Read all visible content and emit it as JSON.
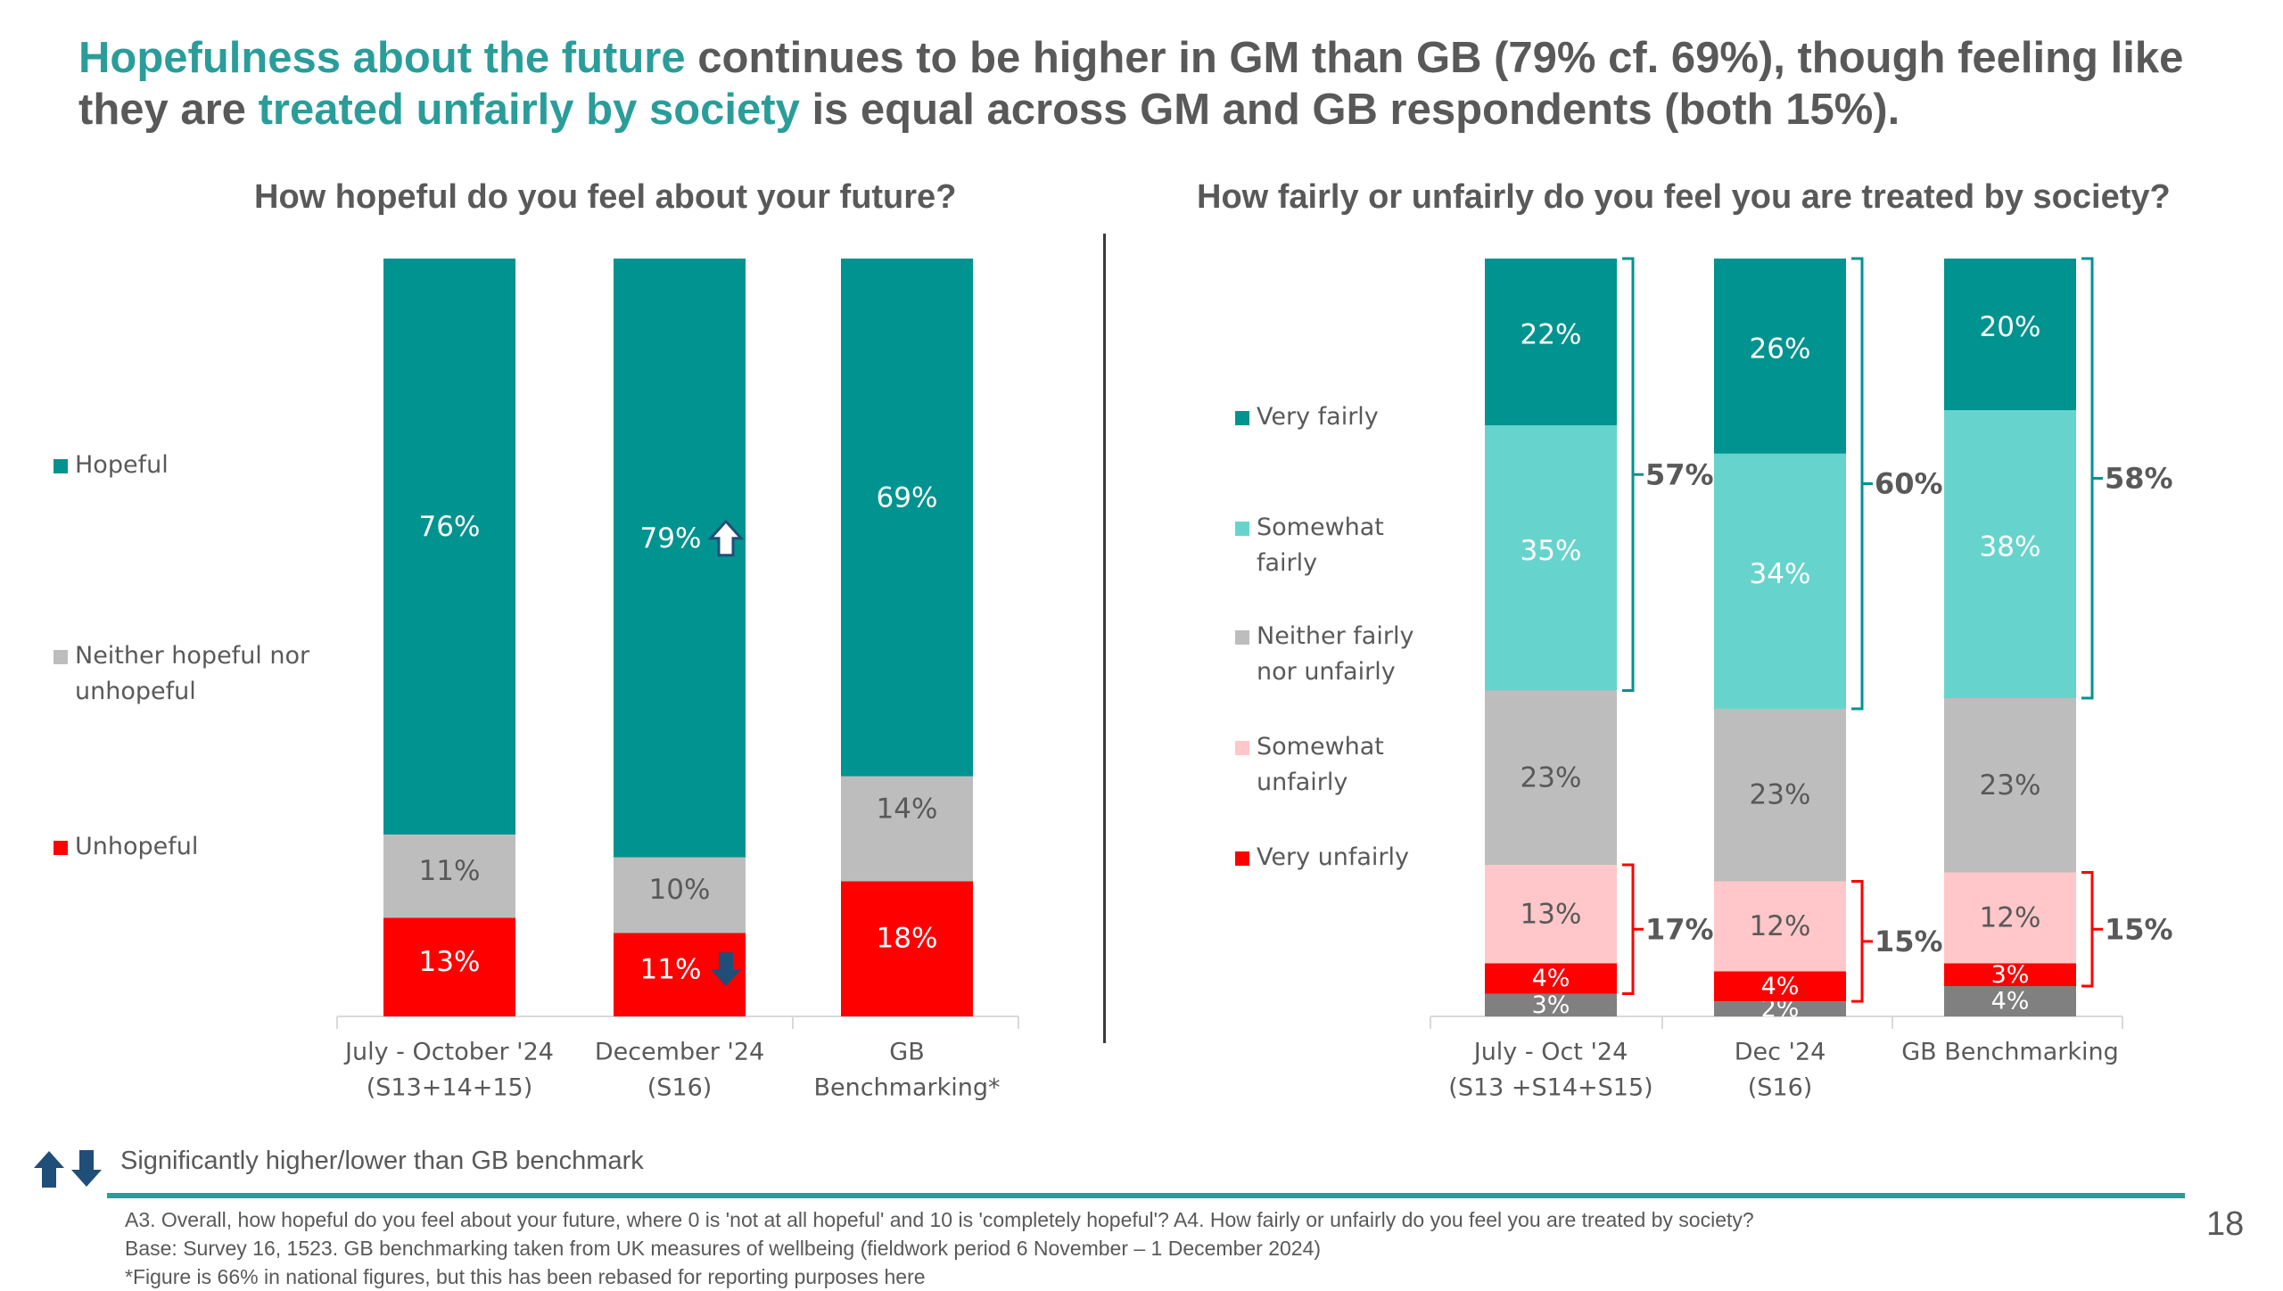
{
  "headline": {
    "h1": "Hopefulness about the future",
    "t1": " continues to be higher in GM than GB (79% cf. 69%), though feeling like they are ",
    "h2": "treated unfairly by society",
    "t2": " is equal across GM and GB respondents (both 15%)."
  },
  "colors": {
    "accent": "#2a9d9a",
    "hopeful": "#009390",
    "neither": "#bdbdbd",
    "unhopeful": "#ff0000",
    "very_fairly": "#009390",
    "somewhat_fairly": "#66d4cc",
    "neither_fair": "#bdbdbd",
    "somewhat_unfairly": "#ffc7c9",
    "very_unfairly": "#ff0000",
    "dont_know": "#808080",
    "arrow": "#1f4e79"
  },
  "legend_left": [
    {
      "label": "Hopeful",
      "color_key": "hopeful"
    },
    {
      "label": "Neither hopeful nor unhopeful",
      "color_key": "neither"
    },
    {
      "label": "Unhopeful",
      "color_key": "unhopeful"
    }
  ],
  "legend_right": [
    {
      "label": "Very fairly",
      "color_key": "very_fairly"
    },
    {
      "label": "Somewhat fairly",
      "color_key": "somewhat_fairly"
    },
    {
      "label": "Neither fairly nor unfairly",
      "color_key": "neither_fair"
    },
    {
      "label": "Somewhat unfairly",
      "color_key": "somewhat_unfairly"
    },
    {
      "label": "Very unfairly",
      "color_key": "very_unfairly"
    }
  ],
  "chart_data": [
    {
      "type": "bar",
      "stacked": true,
      "title": "How hopeful do you feel about your future?",
      "categories": [
        [
          "July - October '24",
          "(S13+14+15)"
        ],
        [
          "December '24",
          "(S16)"
        ],
        [
          "GB",
          "Benchmarking*"
        ]
      ],
      "series": [
        {
          "name": "Unhopeful",
          "color_key": "unhopeful",
          "values": [
            13,
            11,
            18
          ],
          "labels": [
            "13%",
            "11%",
            "18%"
          ]
        },
        {
          "name": "Neither hopeful nor unhopeful",
          "color_key": "neither",
          "values": [
            11,
            10,
            14
          ],
          "labels": [
            "11%",
            "10%",
            "14%"
          ]
        },
        {
          "name": "Hopeful",
          "color_key": "hopeful",
          "values": [
            76,
            79,
            69
          ],
          "labels": [
            "76%",
            "79%",
            "69%"
          ]
        }
      ],
      "significance": [
        {
          "category": 1,
          "series": "Hopeful",
          "direction": "up"
        },
        {
          "category": 1,
          "series": "Unhopeful",
          "direction": "down"
        }
      ],
      "legend": "left"
    },
    {
      "type": "bar",
      "stacked": true,
      "title": "How fairly or unfairly do you feel you are treated by society?",
      "categories": [
        [
          "July - Oct '24",
          "(S13 +S14+S15)"
        ],
        [
          "Dec '24",
          "(S16)"
        ],
        [
          "GB Benchmarking"
        ]
      ],
      "series": [
        {
          "name": "",
          "color_key": "dont_know",
          "values": [
            3,
            2,
            4
          ],
          "labels": [
            "3%",
            "2%",
            "4%"
          ]
        },
        {
          "name": "Very unfairly",
          "color_key": "very_unfairly",
          "values": [
            4,
            4,
            3
          ],
          "labels": [
            "4%",
            "4%",
            "3%"
          ]
        },
        {
          "name": "Somewhat unfairly",
          "color_key": "somewhat_unfairly",
          "values": [
            13,
            12,
            12
          ],
          "labels": [
            "13%",
            "12%",
            "12%"
          ]
        },
        {
          "name": "Neither fairly nor unfairly",
          "color_key": "neither_fair",
          "values": [
            23,
            23,
            23
          ],
          "labels": [
            "23%",
            "23%",
            "23%"
          ]
        },
        {
          "name": "Somewhat fairly",
          "color_key": "somewhat_fairly",
          "values": [
            35,
            34,
            38
          ],
          "labels": [
            "35%",
            "34%",
            "38%"
          ]
        },
        {
          "name": "Very fairly",
          "color_key": "very_fairly",
          "values": [
            22,
            26,
            20
          ],
          "labels": [
            "22%",
            "26%",
            "20%"
          ]
        }
      ],
      "net_fairly": [
        "57%",
        "60%",
        "58%"
      ],
      "net_unfairly": [
        "17%",
        "15%",
        "15%"
      ],
      "legend": "left"
    }
  ],
  "significance_note": "Significantly higher/lower than GB benchmark",
  "footnotes": [
    "A3. Overall, how hopeful do you feel about your future, where 0 is 'not at all hopeful' and 10 is 'completely hopeful'? A4. How fairly or unfairly do you feel you are treated by society?",
    "Base: Survey 16, 1523. GB benchmarking taken from UK measures of wellbeing (fieldwork period 6 November – 1 December 2024)",
    "*Figure is 66% in national figures, but this has been rebased for reporting purposes here"
  ],
  "page_number": "18"
}
